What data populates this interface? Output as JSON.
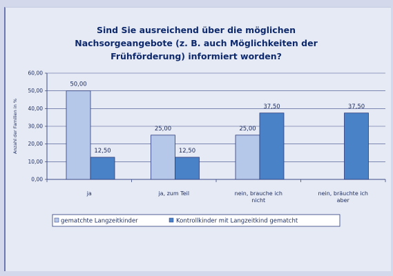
{
  "chart_data": {
    "type": "bar",
    "title_lines": [
      "Sind Sie ausreichend über die möglichen",
      "Nachsorgeangebote (z. B. auch Möglichkeiten der",
      "Frühförderung) informiert worden?"
    ],
    "ylabel": "Anzahl der Familien in %",
    "xlabel": "",
    "ylim": [
      0,
      60
    ],
    "yticks": [
      "0,00",
      "10,00",
      "20,00",
      "30,00",
      "40,00",
      "50,00",
      "60,00"
    ],
    "categories": [
      [
        "ja"
      ],
      [
        "ja, zum Teil"
      ],
      [
        "nein, brauche ich",
        "nicht"
      ],
      [
        "nein, bräuchte ich",
        "aber"
      ]
    ],
    "series": [
      {
        "name": "gematchte Langzeitkinder",
        "color": "#b6c8ea",
        "values": [
          50.0,
          25.0,
          25.0,
          null
        ],
        "labels": [
          "50,00",
          "25,00",
          "25,00",
          ""
        ]
      },
      {
        "name": "Kontrollkinder mit Langzeitkind gematcht",
        "color": "#4a82c8",
        "values": [
          12.5,
          12.5,
          37.5,
          37.5
        ],
        "labels": [
          "12,50",
          "12,50",
          "37,50",
          "37,50"
        ]
      }
    ],
    "grid": true,
    "legend_position": "bottom"
  }
}
